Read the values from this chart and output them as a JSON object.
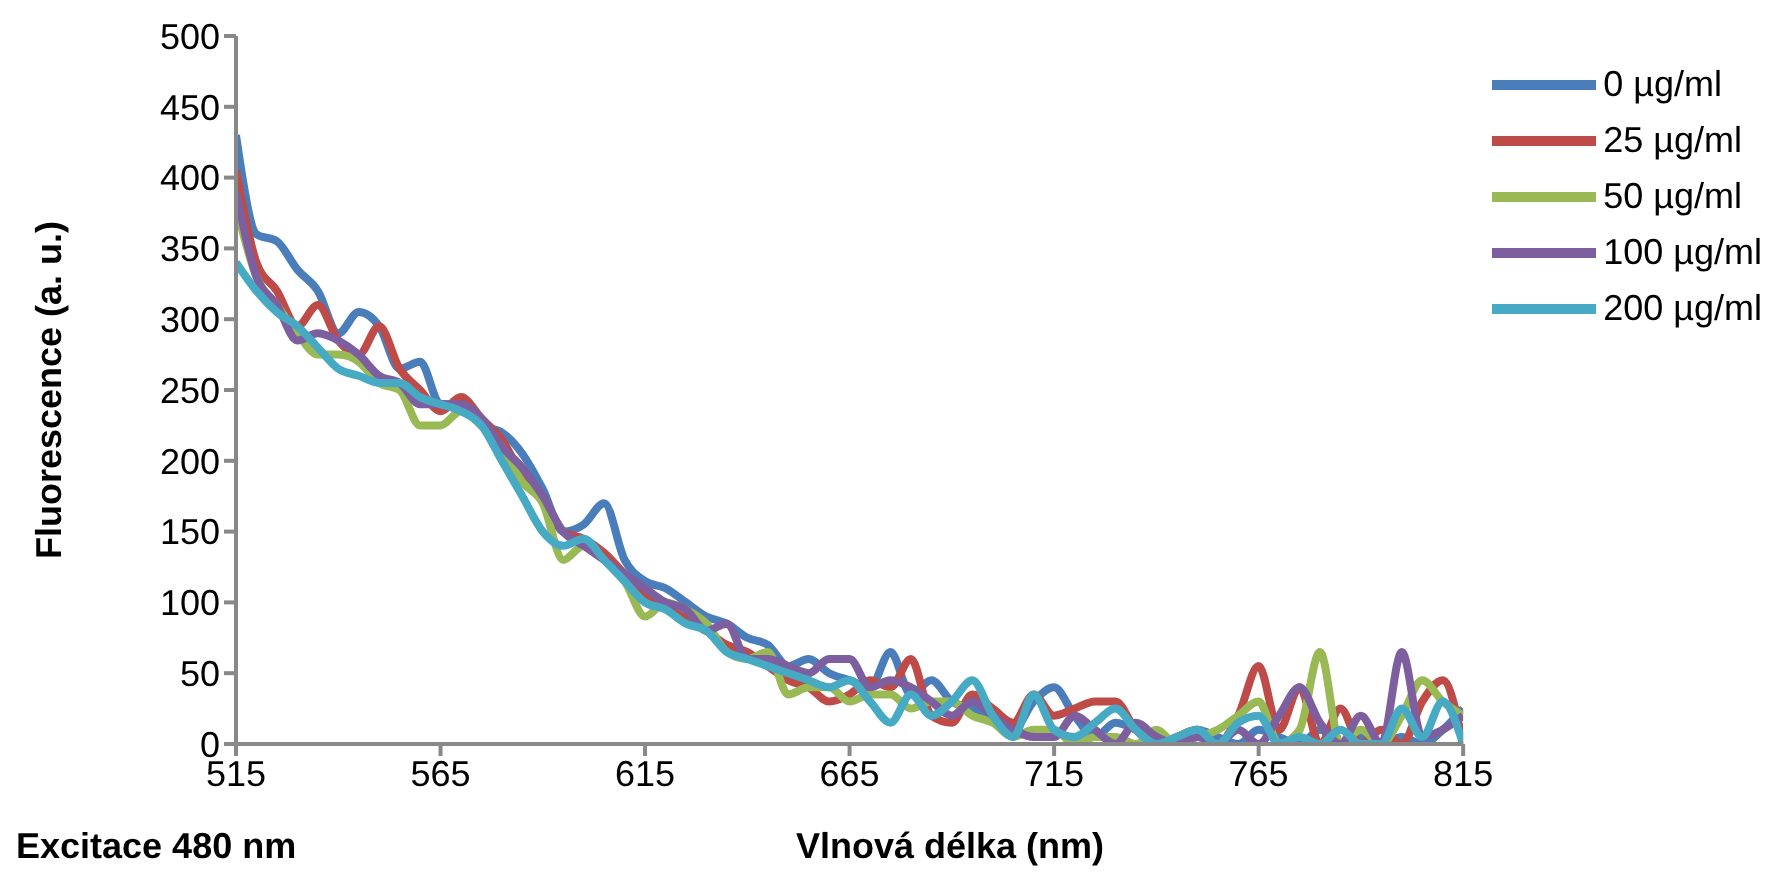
{
  "chart_data": {
    "type": "line",
    "xlabel": "Vlnová délka (nm)",
    "ylabel": "Fluorescence (a. u.)",
    "annotations": [
      "Excitace 480 nm"
    ],
    "x": [
      515,
      520,
      525,
      530,
      535,
      540,
      545,
      550,
      555,
      560,
      565,
      570,
      575,
      580,
      585,
      590,
      595,
      600,
      605,
      610,
      615,
      620,
      625,
      630,
      635,
      640,
      645,
      650,
      655,
      660,
      665,
      670,
      675,
      680,
      685,
      690,
      695,
      700,
      705,
      710,
      715,
      720,
      725,
      730,
      735,
      740,
      745,
      750,
      755,
      760,
      765,
      770,
      775,
      780,
      785,
      790,
      795,
      800,
      805,
      810,
      815
    ],
    "xlim": [
      515,
      815
    ],
    "xticks": [
      515,
      565,
      615,
      665,
      715,
      765,
      815
    ],
    "ylim": [
      0,
      500
    ],
    "yticks": [
      0,
      50,
      100,
      150,
      200,
      250,
      300,
      350,
      400,
      450,
      500
    ],
    "grid": false,
    "legend": "top right",
    "marker": "none",
    "line_style": "solid",
    "series": [
      {
        "name": "0 µg/ml",
        "color": "#4a7ebb",
        "values": [
          430,
          360,
          355,
          335,
          320,
          290,
          305,
          295,
          265,
          270,
          240,
          240,
          225,
          220,
          205,
          180,
          150,
          155,
          170,
          130,
          115,
          110,
          100,
          90,
          85,
          75,
          70,
          55,
          60,
          50,
          45,
          40,
          65,
          35,
          45,
          30,
          25,
          20,
          10,
          30,
          40,
          20,
          5,
          15,
          10,
          0,
          5,
          10,
          5,
          0,
          10,
          5,
          0,
          10,
          0,
          5,
          0,
          5,
          0,
          10,
          25
        ]
      },
      {
        "name": "25 µg/ml",
        "color": "#be4b48",
        "values": [
          405,
          340,
          320,
          295,
          310,
          285,
          275,
          295,
          265,
          250,
          235,
          245,
          230,
          215,
          190,
          175,
          150,
          145,
          135,
          120,
          105,
          100,
          90,
          80,
          70,
          65,
          55,
          45,
          40,
          30,
          35,
          45,
          40,
          60,
          20,
          15,
          35,
          25,
          15,
          35,
          20,
          25,
          30,
          30,
          10,
          0,
          5,
          10,
          0,
          20,
          55,
          10,
          40,
          0,
          25,
          0,
          10,
          0,
          30,
          45,
          0
        ]
      },
      {
        "name": "50 µg/ml",
        "color": "#98b954",
        "values": [
          380,
          330,
          310,
          290,
          275,
          275,
          270,
          255,
          250,
          225,
          225,
          235,
          225,
          210,
          185,
          170,
          130,
          140,
          130,
          115,
          90,
          100,
          95,
          85,
          65,
          60,
          65,
          35,
          40,
          40,
          30,
          35,
          35,
          25,
          30,
          30,
          20,
          15,
          5,
          10,
          10,
          0,
          5,
          5,
          0,
          10,
          0,
          5,
          10,
          20,
          30,
          0,
          10,
          65,
          0,
          10,
          0,
          20,
          45,
          30,
          20
        ]
      },
      {
        "name": "100 µg/ml",
        "color": "#7d5fa0",
        "values": [
          390,
          330,
          310,
          285,
          290,
          285,
          275,
          260,
          255,
          240,
          240,
          240,
          230,
          210,
          195,
          175,
          150,
          140,
          130,
          120,
          110,
          100,
          95,
          80,
          85,
          60,
          60,
          55,
          50,
          60,
          60,
          40,
          45,
          40,
          30,
          20,
          30,
          20,
          10,
          5,
          5,
          20,
          10,
          0,
          15,
          5,
          0,
          5,
          0,
          10,
          0,
          20,
          40,
          15,
          0,
          20,
          0,
          65,
          5,
          10,
          20
        ]
      },
      {
        "name": "200 µg/ml",
        "color": "#46aac5",
        "values": [
          340,
          320,
          305,
          295,
          280,
          265,
          260,
          255,
          255,
          245,
          240,
          235,
          225,
          200,
          175,
          150,
          140,
          145,
          130,
          115,
          100,
          95,
          85,
          80,
          65,
          60,
          55,
          50,
          45,
          40,
          45,
          30,
          15,
          35,
          20,
          30,
          45,
          20,
          5,
          35,
          10,
          5,
          15,
          25,
          10,
          0,
          5,
          10,
          0,
          15,
          20,
          0,
          5,
          0,
          10,
          0,
          0,
          25,
          5,
          30,
          0
        ]
      }
    ]
  }
}
